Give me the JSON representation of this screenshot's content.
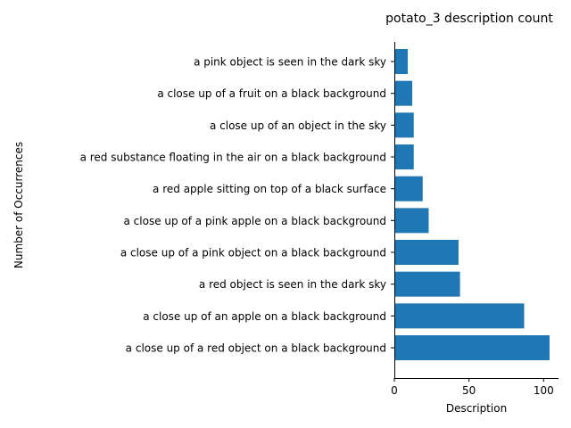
{
  "chart_data": {
    "type": "bar",
    "orientation": "horizontal",
    "title": "potato_3 description count",
    "xlabel": "Description",
    "ylabel": "Number of Occurrences",
    "xlim": [
      0,
      110
    ],
    "xticks": [
      0,
      50,
      100
    ],
    "grid": false,
    "bar_color": "#1f77b4",
    "categories": [
      "a close up of a red object on a black background",
      "a close up of an apple on a black background",
      "a red object is seen in the dark sky",
      "a close up of a pink object on a black background",
      "a close up of a pink apple on a black background",
      "a red apple sitting on top of a black surface",
      "a red substance floating in the air on a black background",
      "a close up of an object in the sky",
      "a close up of a fruit on a black background",
      "a pink object is seen in the dark sky"
    ],
    "values": [
      104,
      87,
      44,
      43,
      23,
      19,
      13,
      13,
      12,
      9
    ]
  }
}
